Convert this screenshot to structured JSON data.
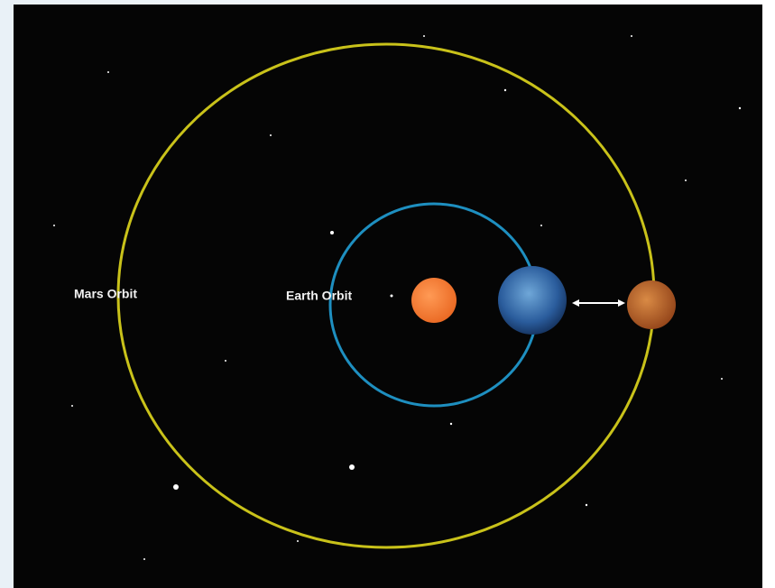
{
  "labels": {
    "mars_orbit": "Mars Orbit",
    "earth_orbit": "Earth Orbit"
  }
}
